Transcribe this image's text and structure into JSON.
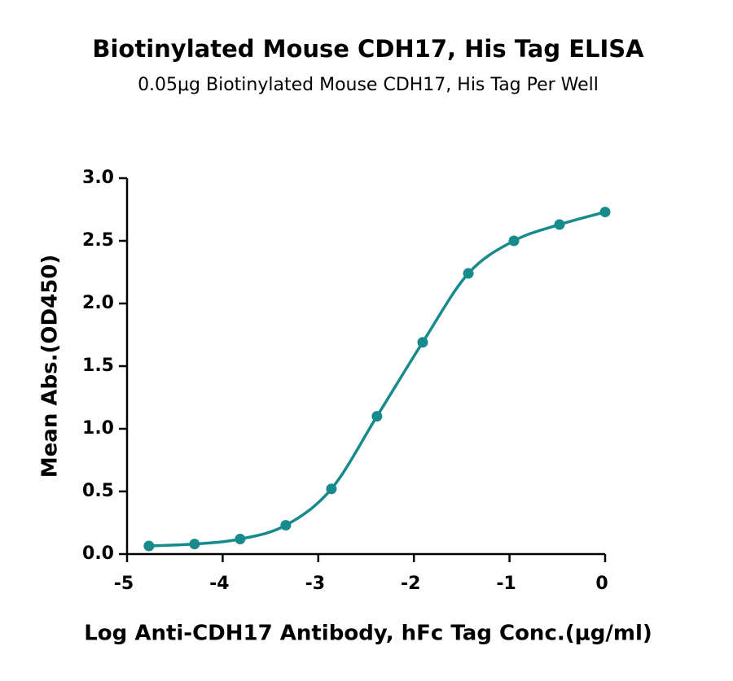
{
  "chart_data": {
    "type": "line",
    "title": "Biotinylated Mouse CDH17, His Tag ELISA",
    "subtitle": "0.05μg Biotinylated Mouse CDH17, His Tag Per Well",
    "x_label": "Log Anti-CDH17 Antibody, hFc Tag Conc.(μg/ml)",
    "y_label": "Mean Abs.(OD450)",
    "x": [
      -4.771,
      -4.294,
      -3.817,
      -3.34,
      -2.863,
      -2.386,
      -1.908,
      -1.431,
      -0.954,
      -0.477,
      0
    ],
    "values": [
      0.065,
      0.08,
      0.12,
      0.23,
      0.52,
      1.1,
      1.69,
      2.24,
      2.5,
      2.63,
      2.73
    ],
    "color": "#178a8c",
    "xlim": [
      -5,
      0
    ],
    "xticks": [
      -5,
      -4,
      -3,
      -2,
      -1,
      0
    ],
    "ylim": [
      0,
      3
    ],
    "yticks": [
      {
        "value": 0,
        "label": "0.0"
      },
      {
        "value": 0.5,
        "label": "0.5"
      },
      {
        "value": 1,
        "label": "1.0"
      },
      {
        "value": 1.5,
        "label": "1.5"
      },
      {
        "value": 2,
        "label": "2.0"
      },
      {
        "value": 2.5,
        "label": "2.5"
      },
      {
        "value": 3,
        "label": "3.0"
      }
    ]
  }
}
